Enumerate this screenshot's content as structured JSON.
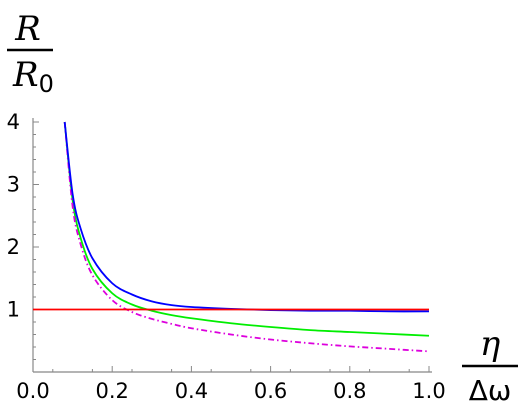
{
  "chart_data": {
    "type": "line",
    "title": "",
    "ylabel": {
      "numerator": "R",
      "denominator_letter": "R",
      "denominator_sub": "0"
    },
    "xlabel": {
      "numerator": "η",
      "denominator": "Δω"
    },
    "xlim": [
      0.0,
      1.0
    ],
    "ylim": [
      0.0,
      4.0
    ],
    "x_ticks": [
      "0.0",
      "0.2",
      "0.4",
      "0.6",
      "0.8",
      "1.0"
    ],
    "y_ticks": [
      "1",
      "2",
      "3",
      "4"
    ],
    "grid": false,
    "series": [
      {
        "color": "#ff0000",
        "style": "solid",
        "x": [
          0.0,
          1.0
        ],
        "y": [
          1.0,
          1.0
        ]
      },
      {
        "color": "#0000ff",
        "style": "solid",
        "x": [
          0.08,
          0.1,
          0.12,
          0.15,
          0.2,
          0.25,
          0.3,
          0.35,
          0.4,
          0.5,
          0.6,
          0.7,
          0.8,
          0.9,
          1.0
        ],
        "y": [
          4.0,
          2.85,
          2.3,
          1.82,
          1.42,
          1.24,
          1.13,
          1.07,
          1.04,
          1.01,
          0.99,
          0.98,
          0.98,
          0.97,
          0.97
        ]
      },
      {
        "color": "#00ee00",
        "style": "solid",
        "x": [
          0.08,
          0.1,
          0.12,
          0.15,
          0.2,
          0.25,
          0.3,
          0.35,
          0.4,
          0.5,
          0.6,
          0.7,
          0.8,
          0.9,
          1.0
        ],
        "y": [
          4.0,
          2.75,
          2.15,
          1.65,
          1.26,
          1.08,
          0.98,
          0.91,
          0.86,
          0.78,
          0.72,
          0.67,
          0.64,
          0.61,
          0.58
        ]
      },
      {
        "color": "#dd00dd",
        "style": "dashdot",
        "x": [
          0.08,
          0.1,
          0.12,
          0.15,
          0.2,
          0.25,
          0.3,
          0.35,
          0.4,
          0.5,
          0.6,
          0.7,
          0.8,
          0.9,
          1.0
        ],
        "y": [
          4.0,
          2.65,
          2.05,
          1.55,
          1.15,
          0.96,
          0.85,
          0.77,
          0.7,
          0.6,
          0.52,
          0.46,
          0.41,
          0.37,
          0.33
        ]
      }
    ]
  }
}
